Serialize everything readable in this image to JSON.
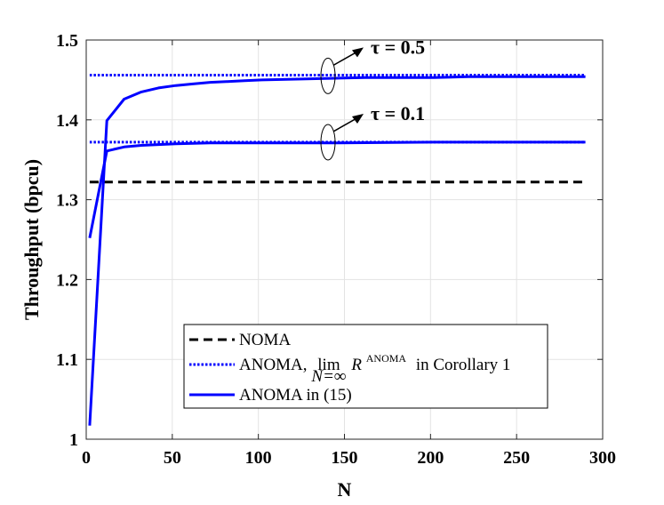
{
  "chart_data": {
    "type": "line",
    "xlabel": "N",
    "ylabel": "Throughput (bpcu)",
    "xlim": [
      0,
      300
    ],
    "ylim": [
      1,
      1.5
    ],
    "xticks": [
      0,
      50,
      100,
      150,
      200,
      250,
      300
    ],
    "yticks": [
      1,
      1.1,
      1.2,
      1.3,
      1.4,
      1.5
    ],
    "x_tick_labels": [
      "0",
      "50",
      "100",
      "150",
      "200",
      "250",
      "300"
    ],
    "y_tick_labels": [
      "1",
      "1.1",
      "1.2",
      "1.3",
      "1.4",
      "1.5"
    ],
    "grid": true,
    "legend_position": "lower-center",
    "series": [
      {
        "name": "NOMA",
        "style": "dashed",
        "color": "#000000",
        "x": [
          2,
          290
        ],
        "y": [
          1.322,
          1.322
        ]
      },
      {
        "name": "ANOMA limit tau=0.5",
        "style": "dotted",
        "color": "#0000ff",
        "x": [
          2,
          290
        ],
        "y": [
          1.456,
          1.456
        ]
      },
      {
        "name": "ANOMA limit tau=0.1",
        "style": "dotted",
        "color": "#0000ff",
        "x": [
          2,
          290
        ],
        "y": [
          1.372,
          1.372
        ]
      },
      {
        "name": "ANOMA in (15) tau=0.5",
        "style": "solid",
        "color": "#0000ff",
        "x": [
          2,
          12,
          22,
          32,
          42,
          52,
          62,
          72,
          82,
          92,
          102,
          122,
          142,
          162,
          182,
          202,
          222,
          242,
          262,
          290
        ],
        "y": [
          1.017,
          1.399,
          1.426,
          1.435,
          1.44,
          1.443,
          1.445,
          1.447,
          1.448,
          1.449,
          1.45,
          1.451,
          1.452,
          1.453,
          1.453,
          1.453,
          1.454,
          1.454,
          1.454,
          1.454
        ]
      },
      {
        "name": "ANOMA in (15) tau=0.1",
        "style": "solid",
        "color": "#0000ff",
        "x": [
          2,
          12,
          22,
          32,
          42,
          52,
          72,
          102,
          142,
          202,
          290
        ],
        "y": [
          1.252,
          1.361,
          1.366,
          1.368,
          1.369,
          1.37,
          1.371,
          1.371,
          1.371,
          1.372,
          1.372
        ]
      }
    ],
    "legend": [
      {
        "label": "NOMA",
        "style": "dashed",
        "color": "#000000"
      },
      {
        "label_prefix": "ANOMA,",
        "lim_text": "lim",
        "lim_sub": "N=∞",
        "r_text": "R",
        "r_sup": "ANOMA",
        "label_suffix": "in Corollary 1",
        "style": "dotted",
        "color": "#0000ff"
      },
      {
        "label": "ANOMA in (15)",
        "style": "solid",
        "color": "#0000ff"
      }
    ],
    "annotations": [
      {
        "text": "τ = 0.5",
        "at_x": 142,
        "at_y": 1.455
      },
      {
        "text": "τ = 0.1",
        "at_x": 142,
        "at_y": 1.372
      }
    ]
  }
}
